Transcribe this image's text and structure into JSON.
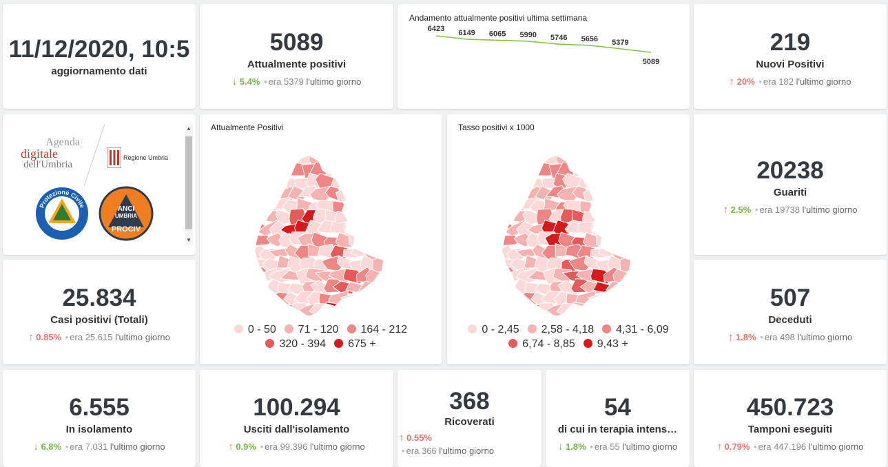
{
  "kpis": {
    "update": {
      "value": "11/12/2020, 10:5",
      "label": "aggiornamento dati"
    },
    "positivi": {
      "value": "5089",
      "label": "Attualmente positivi",
      "arrow": "↓",
      "pct": "5.4%",
      "era": "era 5379",
      "ult": "l'ultimo giorno"
    },
    "nuovi": {
      "value": "219",
      "label": "Nuovi Positivi",
      "arrow": "↑",
      "pct": "20%",
      "era": "era 182",
      "ult": "l'ultimo giorno"
    },
    "guariti": {
      "value": "20238",
      "label": "Guariti",
      "arrow": "↑",
      "pct": "2.5%",
      "era": "era 19738",
      "ult": "l'ultimo giorno"
    },
    "casi": {
      "value": "25.834",
      "label": "Casi positivi (Totali)",
      "arrow": "↑",
      "pct": "0.85%",
      "era": "era 25.615",
      "ult": "l'ultimo giorno"
    },
    "deceduti": {
      "value": "507",
      "label": "Deceduti",
      "arrow": "↑",
      "pct": "1.8%",
      "era": "era 498",
      "ult": "l'ultimo giorno"
    },
    "isolamento": {
      "value": "6.555",
      "label": "In isolamento",
      "arrow": "↓",
      "pct": "6.8%",
      "era": "era 7.031",
      "ult": "l'ultimo giorno"
    },
    "usciti": {
      "value": "100.294",
      "label": "Usciti dall'isolamento",
      "arrow": "↑",
      "pct": "0.9%",
      "era": "era 99.396",
      "ult": "l'ultimo giorno"
    },
    "ricoverati": {
      "value": "368",
      "label": "Ricoverati",
      "arrow": "↑",
      "pct": "0.55%",
      "era": "era 366",
      "ult": "l'ultimo giorno"
    },
    "terapia": {
      "value": "54",
      "label": "di cui in terapia intens…",
      "arrow": "↓",
      "pct": "1.8%",
      "era": "era 55",
      "ult": "l'ultimo giorno"
    },
    "tamponi": {
      "value": "450.723",
      "label": "Tamponi eseguiti",
      "arrow": "↑",
      "pct": "0.79%",
      "era": "era 447.196",
      "ult": "l'ultimo giorno"
    }
  },
  "colors": {
    "up_bad": "#e57373",
    "down_good": "#7cb342",
    "line": "#8bc34a"
  },
  "trend": {
    "title": "Andamento attualmente positivi ultima settimana",
    "values": [
      6423,
      6149,
      6065,
      5990,
      5746,
      5656,
      5379,
      5089
    ],
    "labels": [
      "6423",
      "6149",
      "6065",
      "5990",
      "5746",
      "5656",
      "5379",
      "5089"
    ]
  },
  "logos": {
    "agenda_line1": "Agenda",
    "agenda_line2": "digitale",
    "agenda_line3": "dell'Umbria",
    "regione": "Regione Umbria",
    "protezione_top": "Protezione Civile",
    "protezione_bottom": "Regione Umbria",
    "anci_line1": "ANCI",
    "anci_line2": "UMBRIA",
    "anci_line3": "PROCIV"
  },
  "map1": {
    "title": "Attualmente Positivi",
    "legend": [
      {
        "label": "0 - 50",
        "color": "#fcd9d9"
      },
      {
        "label": "71 - 120",
        "color": "#f6b1b1"
      },
      {
        "label": "164 - 212",
        "color": "#ef8585"
      },
      {
        "label": "320 - 394",
        "color": "#e55a5a"
      },
      {
        "label": "675 +",
        "color": "#d7191c"
      }
    ]
  },
  "map2": {
    "title": "Tasso positivi x 1000",
    "legend": [
      {
        "label": "0 - 2,45",
        "color": "#fcd9d9"
      },
      {
        "label": "2,58 - 4,18",
        "color": "#f6b1b1"
      },
      {
        "label": "4,31 - 6,09",
        "color": "#ef8585"
      },
      {
        "label": "6,74 - 8,85",
        "color": "#e55a5a"
      },
      {
        "label": "9,43 +",
        "color": "#d7191c"
      }
    ]
  }
}
